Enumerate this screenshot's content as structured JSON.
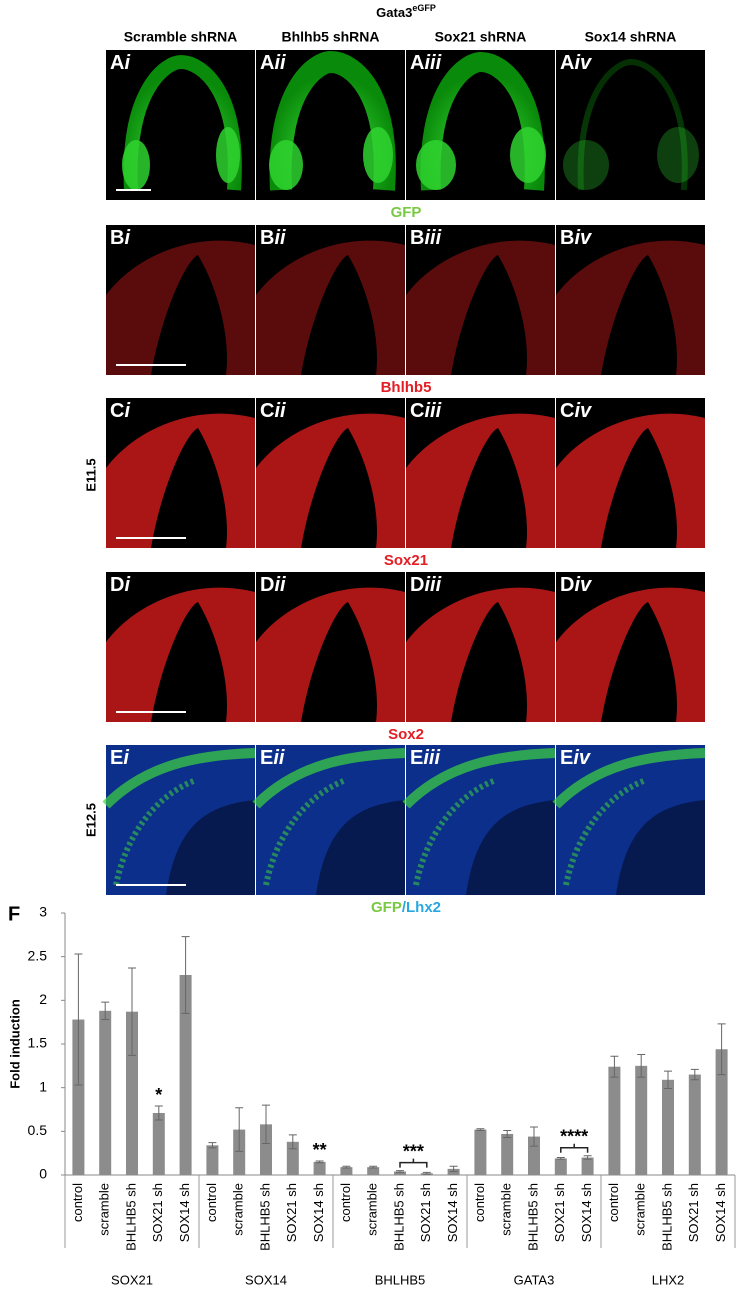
{
  "figure": {
    "title": "Gata3",
    "title_superscript": "eGFP",
    "columns": [
      "Scramble shRNA",
      "Bhlhb5 shRNA",
      "Sox21 shRNA",
      "Sox14 shRNA"
    ],
    "numerals": [
      "i",
      "ii",
      "iii",
      "iv"
    ],
    "rows": [
      {
        "letter": "A",
        "stain": [
          {
            "text": "GFP",
            "color": "#7ac943"
          }
        ]
      },
      {
        "letter": "B",
        "stain": [
          {
            "text": "Bhlhb5",
            "color": "#e31e24"
          }
        ]
      },
      {
        "letter": "C",
        "stain": [
          {
            "text": "Sox21",
            "color": "#e31e24"
          }
        ]
      },
      {
        "letter": "D",
        "stain": [
          {
            "text": "Sox2",
            "color": "#e31e24"
          }
        ]
      },
      {
        "letter": "E",
        "stain": [
          {
            "text": "GFP",
            "color": "#7ac943"
          },
          {
            "text": "/",
            "color": "#29a8e0"
          },
          {
            "text": "Lhx2",
            "color": "#29a8e0"
          }
        ]
      }
    ],
    "ages": [
      "E11.5",
      "E12.5"
    ]
  },
  "chart_data": {
    "type": "bar",
    "panel": "F",
    "ylabel": "Fold induction",
    "color": "#8c8c8c",
    "ylim": [
      0,
      3
    ],
    "yticks": [
      0,
      0.5,
      1,
      1.5,
      2,
      2.5,
      3
    ],
    "groups": [
      {
        "name": "SOX21",
        "categories": [
          "control",
          "scramble",
          "BHLHB5 sh",
          "SOX21 sh",
          "SOX14 sh"
        ],
        "values": [
          1.78,
          1.88,
          1.87,
          0.71,
          2.29
        ],
        "errors": [
          0.75,
          0.1,
          0.5,
          0.08,
          0.44
        ]
      },
      {
        "name": "SOX14",
        "categories": [
          "control",
          "scramble",
          "BHLHB5 sh",
          "SOX21 sh",
          "SOX14 sh"
        ],
        "values": [
          0.34,
          0.52,
          0.58,
          0.38,
          0.15
        ],
        "errors": [
          0.03,
          0.25,
          0.22,
          0.08,
          0.01
        ]
      },
      {
        "name": "BHLHB5",
        "categories": [
          "control",
          "scramble",
          "BHLHB5 sh",
          "SOX21 sh",
          "SOX14 sh"
        ],
        "values": [
          0.09,
          0.09,
          0.04,
          0.02,
          0.07
        ],
        "errors": [
          0.01,
          0.01,
          0.01,
          0.01,
          0.03
        ]
      },
      {
        "name": "GATA3",
        "categories": [
          "control",
          "scramble",
          "BHLHB5 sh",
          "SOX21 sh",
          "SOX14 sh"
        ],
        "values": [
          0.52,
          0.47,
          0.44,
          0.19,
          0.2
        ],
        "errors": [
          0.01,
          0.04,
          0.11,
          0.01,
          0.02
        ]
      },
      {
        "name": "LHX2",
        "categories": [
          "control",
          "scramble",
          "BHLHB5 sh",
          "SOX21 sh",
          "SOX14 sh"
        ],
        "values": [
          1.24,
          1.25,
          1.09,
          1.15,
          1.44
        ],
        "errors": [
          0.12,
          0.13,
          0.1,
          0.06,
          0.29
        ]
      }
    ],
    "annotations": [
      "*",
      "**",
      "***",
      "****"
    ]
  }
}
